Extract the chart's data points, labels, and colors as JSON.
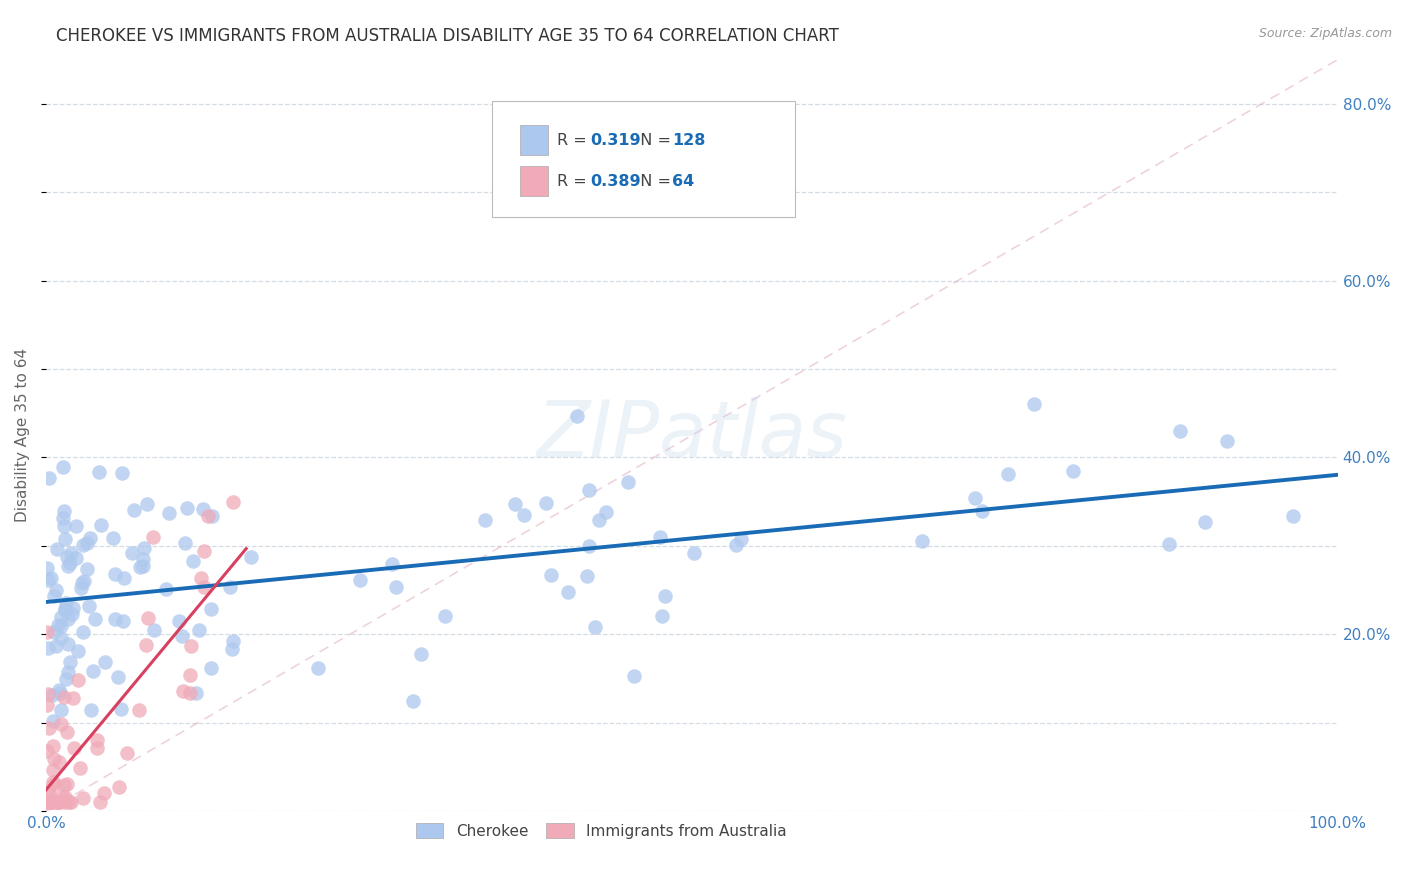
{
  "title": "CHEROKEE VS IMMIGRANTS FROM AUSTRALIA DISABILITY AGE 35 TO 64 CORRELATION CHART",
  "source": "Source: ZipAtlas.com",
  "ylabel": "Disability Age 35 to 64",
  "xlim": [
    0,
    1.0
  ],
  "ylim": [
    0,
    0.85
  ],
  "cherokee_R": "0.319",
  "cherokee_N": "128",
  "australia_R": "0.389",
  "australia_N": "64",
  "cherokee_color": "#adc8ee",
  "australia_color": "#f0aab8",
  "cherokee_line_color": "#1a6bb5",
  "australia_line_color": "#d94060",
  "legend_text_color": "#1a6bb5",
  "watermark": "ZIPatlas",
  "background_color": "#ffffff",
  "grid_color": "#d0d8e0",
  "tick_color": "#4080c0",
  "cherokee_line_start_y": 0.248,
  "cherokee_line_end_y": 0.355,
  "australia_line_start_x": 0.0,
  "australia_line_start_y": 0.0,
  "australia_line_end_x": 0.155,
  "australia_line_end_y": 0.345
}
